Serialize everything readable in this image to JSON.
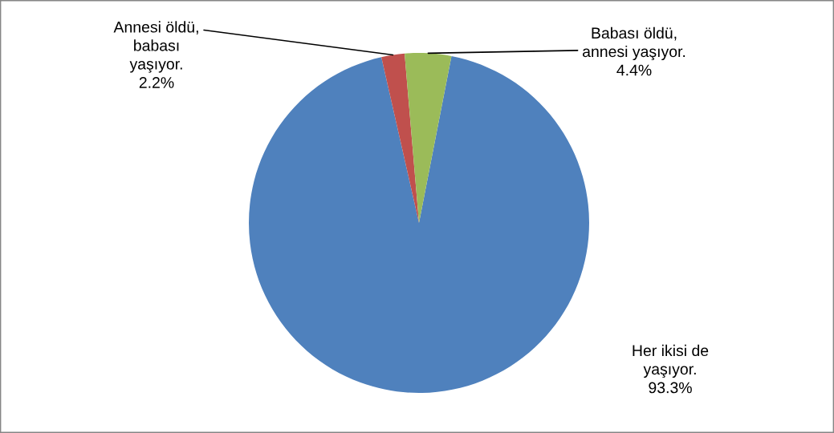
{
  "chart_data": {
    "type": "pie",
    "categories": [
      "Her ikisi de\nyaşıyor.",
      "Annesi öldü,\nbabası\nyaşıyor.",
      "Babası öldü,\nannesi yaşıyor."
    ],
    "values": [
      93.3,
      2.2,
      4.4
    ],
    "value_labels": [
      "93.3%",
      "2.2%",
      "4.4%"
    ],
    "colors": [
      "#4f81bd",
      "#c0504d",
      "#9bbb59"
    ],
    "legend": false
  }
}
